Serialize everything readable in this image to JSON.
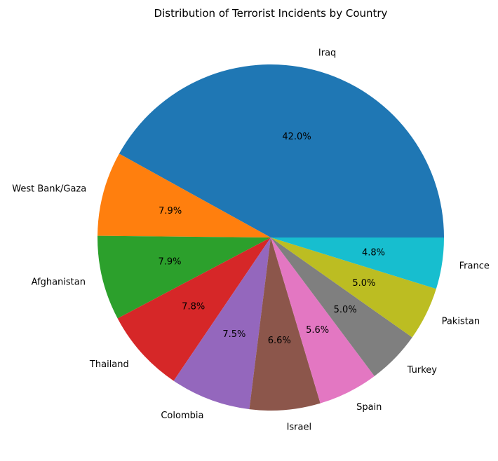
{
  "chart_data": {
    "type": "pie",
    "title": "Distribution of Terrorist Incidents by Country",
    "categories": [
      "Iraq",
      "West Bank/Gaza",
      "Afghanistan",
      "Thailand",
      "Colombia",
      "Israel",
      "Spain",
      "Turkey",
      "Pakistan",
      "France"
    ],
    "values": [
      42.0,
      7.9,
      7.9,
      7.8,
      7.5,
      6.6,
      5.6,
      5.0,
      5.0,
      4.8
    ],
    "value_labels": [
      "42.0%",
      "7.9%",
      "7.9%",
      "7.8%",
      "7.5%",
      "6.6%",
      "5.6%",
      "5.0%",
      "5.0%",
      "4.8%"
    ],
    "colors": [
      "#1f77b4",
      "#ff7f0e",
      "#2ca02c",
      "#d62728",
      "#9467bd",
      "#8c564b",
      "#e377c2",
      "#7f7f7f",
      "#bcbd22",
      "#17becf"
    ],
    "start_angle_deg": 0,
    "direction": "counterclockwise"
  }
}
